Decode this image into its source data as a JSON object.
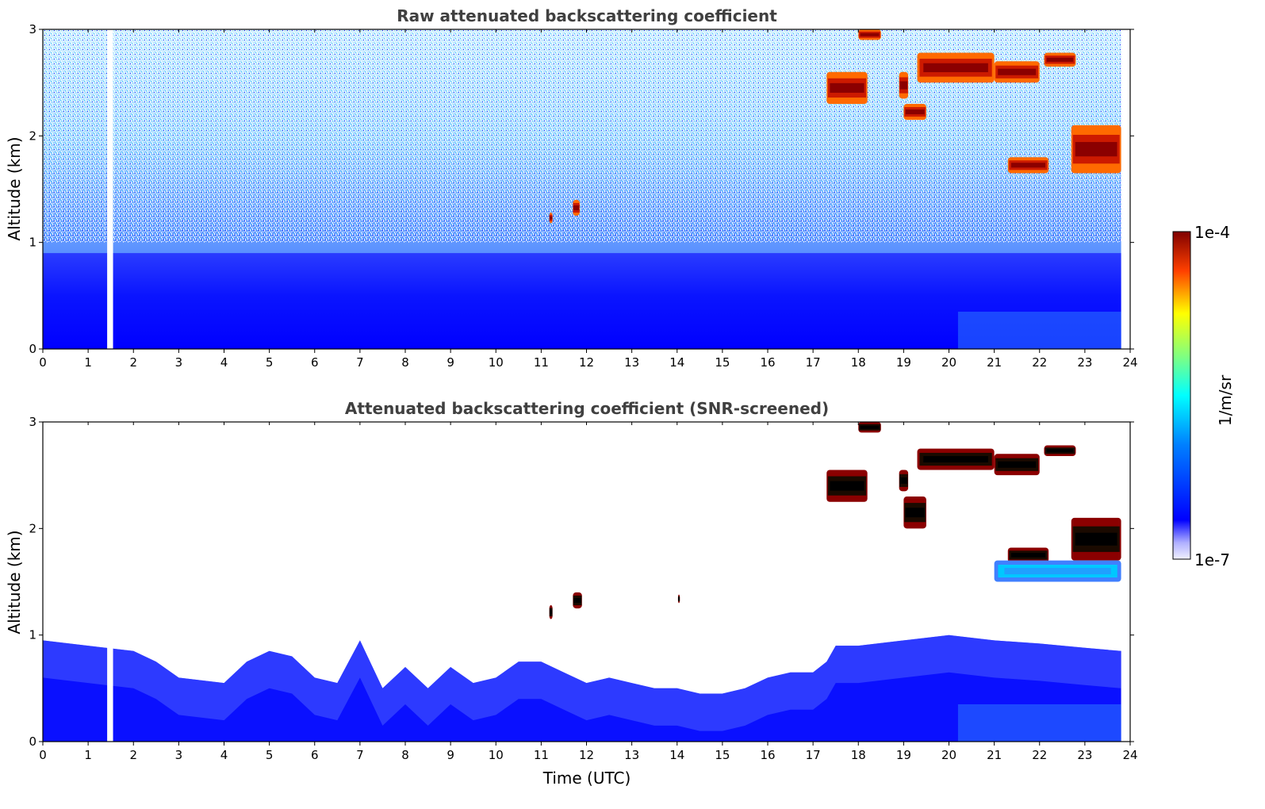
{
  "chart_data": [
    {
      "type": "heatmap",
      "title": "Raw attenuated backscattering coefficient",
      "xlabel": "",
      "ylabel": "Altitude (km)",
      "xlim": [
        0,
        24
      ],
      "ylim": [
        0,
        3
      ],
      "x_ticks": [
        "0",
        "1",
        "2",
        "3",
        "4",
        "5",
        "6",
        "7",
        "8",
        "9",
        "10",
        "11",
        "12",
        "13",
        "14",
        "15",
        "16",
        "17",
        "18",
        "19",
        "20",
        "21",
        "22",
        "23",
        "24"
      ],
      "y_ticks": [
        "0",
        "1",
        "2",
        "3"
      ],
      "data_gap": {
        "x_start": 1.42,
        "x_end": 1.55
      },
      "data_end": 23.8,
      "background": {
        "description_free": true,
        "surface_layer_top_km": 0.9,
        "upper_noise_start_km": 1.0
      },
      "features": [
        {
          "x_start": 17.3,
          "x_end": 18.2,
          "y_min": 2.3,
          "y_max": 2.6,
          "level": "high"
        },
        {
          "x_start": 18.0,
          "x_end": 18.5,
          "y_min": 2.9,
          "y_max": 3.0,
          "level": "high"
        },
        {
          "x_start": 18.9,
          "x_end": 19.1,
          "y_min": 2.35,
          "y_max": 2.6,
          "level": "high"
        },
        {
          "x_start": 19.0,
          "x_end": 19.5,
          "y_min": 2.15,
          "y_max": 2.3,
          "level": "high"
        },
        {
          "x_start": 19.3,
          "x_end": 21.0,
          "y_min": 2.5,
          "y_max": 2.78,
          "level": "high"
        },
        {
          "x_start": 21.0,
          "x_end": 22.0,
          "y_min": 2.5,
          "y_max": 2.7,
          "level": "high"
        },
        {
          "x_start": 22.1,
          "x_end": 22.8,
          "y_min": 2.65,
          "y_max": 2.78,
          "level": "high"
        },
        {
          "x_start": 21.3,
          "x_end": 22.2,
          "y_min": 1.65,
          "y_max": 1.8,
          "level": "high"
        },
        {
          "x_start": 22.7,
          "x_end": 23.8,
          "y_min": 1.65,
          "y_max": 2.1,
          "level": "high"
        },
        {
          "x_start": 11.7,
          "x_end": 11.85,
          "y_min": 1.25,
          "y_max": 1.4,
          "level": "high"
        },
        {
          "x_start": 11.18,
          "x_end": 11.25,
          "y_min": 1.18,
          "y_max": 1.28,
          "level": "high"
        }
      ]
    },
    {
      "type": "heatmap",
      "title": "Attenuated backscattering coefficient (SNR-screened)",
      "xlabel": "Time (UTC)",
      "ylabel": "Altitude (km)",
      "xlim": [
        0,
        24
      ],
      "ylim": [
        0,
        3
      ],
      "x_ticks": [
        "0",
        "1",
        "2",
        "3",
        "4",
        "5",
        "6",
        "7",
        "8",
        "9",
        "10",
        "11",
        "12",
        "13",
        "14",
        "15",
        "16",
        "17",
        "18",
        "19",
        "20",
        "21",
        "22",
        "23",
        "24"
      ],
      "y_ticks": [
        "0",
        "1",
        "2",
        "3"
      ],
      "data_gap": {
        "x_start": 1.42,
        "x_end": 1.55
      },
      "data_end": 23.8,
      "boundary_layer_top_km": [
        [
          0,
          0.95
        ],
        [
          1,
          0.9
        ],
        [
          2,
          0.85
        ],
        [
          2.5,
          0.75
        ],
        [
          3,
          0.6
        ],
        [
          4,
          0.55
        ],
        [
          4.5,
          0.75
        ],
        [
          5,
          0.85
        ],
        [
          5.5,
          0.8
        ],
        [
          6,
          0.6
        ],
        [
          6.5,
          0.55
        ],
        [
          7,
          0.95
        ],
        [
          7.5,
          0.5
        ],
        [
          8,
          0.7
        ],
        [
          8.5,
          0.5
        ],
        [
          9,
          0.7
        ],
        [
          9.5,
          0.55
        ],
        [
          10,
          0.6
        ],
        [
          10.5,
          0.75
        ],
        [
          11,
          0.75
        ],
        [
          11.5,
          0.65
        ],
        [
          12,
          0.55
        ],
        [
          12.5,
          0.6
        ],
        [
          13,
          0.55
        ],
        [
          13.5,
          0.5
        ],
        [
          14,
          0.5
        ],
        [
          14.5,
          0.45
        ],
        [
          15,
          0.45
        ],
        [
          15.5,
          0.5
        ],
        [
          16,
          0.6
        ],
        [
          16.5,
          0.65
        ],
        [
          17,
          0.65
        ],
        [
          17.3,
          0.75
        ],
        [
          17.5,
          0.9
        ],
        [
          18,
          0.9
        ],
        [
          19,
          0.95
        ],
        [
          20,
          1.0
        ],
        [
          21,
          0.95
        ],
        [
          22,
          0.92
        ],
        [
          23,
          0.88
        ],
        [
          23.8,
          0.85
        ]
      ],
      "features": [
        {
          "x_start": 17.3,
          "x_end": 18.2,
          "y_min": 2.25,
          "y_max": 2.55,
          "level": "saturated"
        },
        {
          "x_start": 18.0,
          "x_end": 18.5,
          "y_min": 2.9,
          "y_max": 3.0,
          "level": "saturated"
        },
        {
          "x_start": 18.9,
          "x_end": 19.1,
          "y_min": 2.35,
          "y_max": 2.55,
          "level": "saturated"
        },
        {
          "x_start": 19.0,
          "x_end": 19.5,
          "y_min": 2.0,
          "y_max": 2.3,
          "level": "saturated"
        },
        {
          "x_start": 19.3,
          "x_end": 21.0,
          "y_min": 2.55,
          "y_max": 2.75,
          "level": "saturated"
        },
        {
          "x_start": 21.0,
          "x_end": 22.0,
          "y_min": 2.5,
          "y_max": 2.7,
          "level": "saturated"
        },
        {
          "x_start": 22.1,
          "x_end": 22.8,
          "y_min": 2.68,
          "y_max": 2.78,
          "level": "saturated"
        },
        {
          "x_start": 21.3,
          "x_end": 22.2,
          "y_min": 1.68,
          "y_max": 1.82,
          "level": "saturated"
        },
        {
          "x_start": 22.7,
          "x_end": 23.8,
          "y_min": 1.7,
          "y_max": 2.1,
          "level": "saturated"
        },
        {
          "x_start": 21.0,
          "x_end": 23.8,
          "y_min": 1.5,
          "y_max": 1.7,
          "level": "medium"
        },
        {
          "x_start": 11.7,
          "x_end": 11.9,
          "y_min": 1.25,
          "y_max": 1.4,
          "level": "saturated"
        },
        {
          "x_start": 11.18,
          "x_end": 11.25,
          "y_min": 1.15,
          "y_max": 1.28,
          "level": "saturated"
        },
        {
          "x_start": 14.02,
          "x_end": 14.06,
          "y_min": 1.3,
          "y_max": 1.38,
          "level": "saturated"
        }
      ]
    }
  ],
  "colorbar": {
    "label": "1/m/sr",
    "max_label": "1e-4",
    "min_label": "1e-7",
    "scale": "log",
    "range": [
      1e-07,
      0.0001
    ],
    "colormap": "jet",
    "colors": {
      "low_white": "#f0f0ff",
      "low": "#0000ff",
      "mid": "#00ffff",
      "high_mid": "#ffff00",
      "high": "#ff0000",
      "top": "#800000"
    }
  }
}
